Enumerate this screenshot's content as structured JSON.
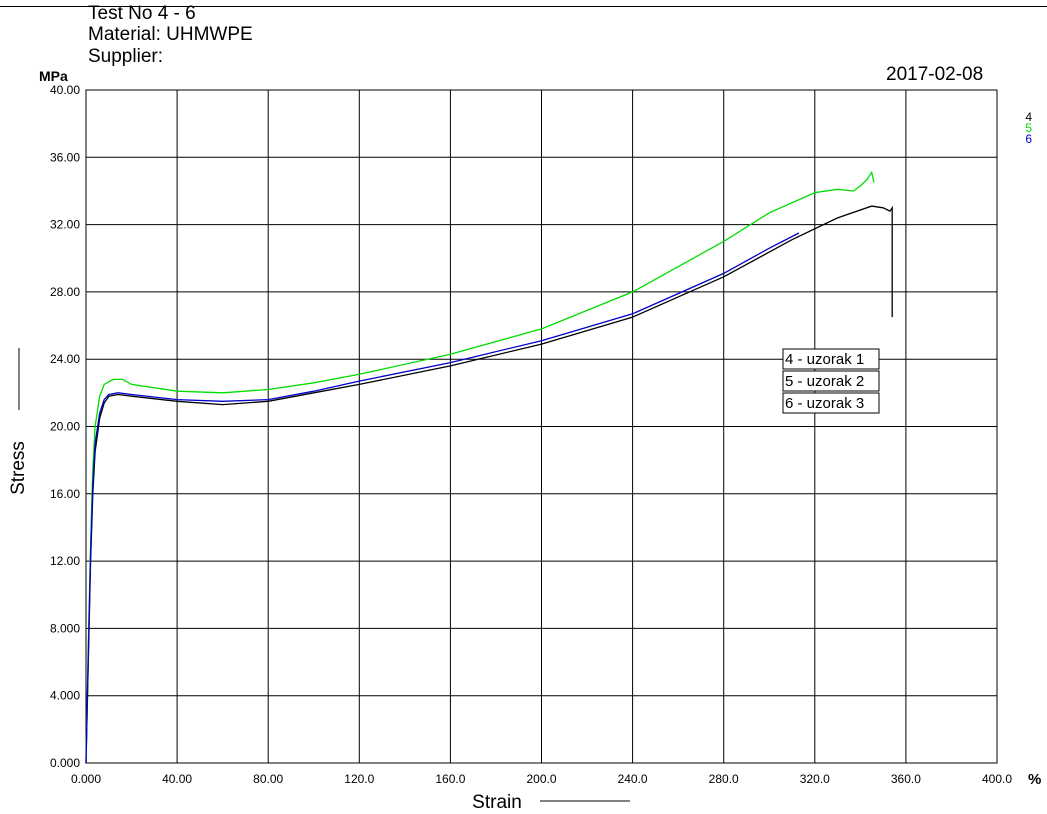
{
  "header": {
    "test_no": "Test No  4 - 6",
    "material": "Material: UHMWPE",
    "supplier": "Supplier:",
    "date": "2017-02-08",
    "y_unit": "MPa",
    "x_unit": "%"
  },
  "chart_data": {
    "type": "line",
    "xlabel": "Strain",
    "ylabel": "Stress",
    "xlim": [
      0,
      400
    ],
    "ylim": [
      0,
      40
    ],
    "grid": true,
    "x_ticks": [
      "0.000",
      "40.00",
      "80.00",
      "120.0",
      "160.0",
      "200.0",
      "240.0",
      "280.0",
      "320.0",
      "360.0",
      "400.0"
    ],
    "y_ticks": [
      "0.000",
      "4.000",
      "8.000",
      "12.00",
      "16.00",
      "20.00",
      "24.00",
      "28.00",
      "32.00",
      "36.00",
      "40.00"
    ],
    "legend_position": "top-right",
    "series": [
      {
        "name": "4",
        "color": "#000000",
        "label": "4 - uzorak 1",
        "points": [
          [
            0,
            0
          ],
          [
            1,
            6
          ],
          [
            2,
            12
          ],
          [
            3,
            16
          ],
          [
            4,
            18.5
          ],
          [
            6,
            20.5
          ],
          [
            8,
            21.4
          ],
          [
            10,
            21.8
          ],
          [
            14,
            21.9
          ],
          [
            20,
            21.8
          ],
          [
            40,
            21.5
          ],
          [
            60,
            21.3
          ],
          [
            80,
            21.5
          ],
          [
            100,
            22
          ],
          [
            120,
            22.5
          ],
          [
            160,
            23.6
          ],
          [
            200,
            24.9
          ],
          [
            240,
            26.5
          ],
          [
            280,
            28.9
          ],
          [
            310,
            31.1
          ],
          [
            330,
            32.4
          ],
          [
            345,
            33.1
          ],
          [
            350,
            33.0
          ],
          [
            353,
            32.8
          ],
          [
            354,
            33.0
          ],
          [
            354,
            26.5
          ]
        ]
      },
      {
        "name": "5",
        "color": "#00dd00",
        "label": "5 - uzorak 2",
        "points": [
          [
            0,
            0
          ],
          [
            1,
            7
          ],
          [
            2,
            13
          ],
          [
            3,
            17.5
          ],
          [
            4,
            20
          ],
          [
            6,
            21.8
          ],
          [
            8,
            22.5
          ],
          [
            12,
            22.8
          ],
          [
            16,
            22.8
          ],
          [
            20,
            22.5
          ],
          [
            40,
            22.1
          ],
          [
            60,
            22.0
          ],
          [
            80,
            22.2
          ],
          [
            100,
            22.6
          ],
          [
            120,
            23.1
          ],
          [
            160,
            24.3
          ],
          [
            200,
            25.8
          ],
          [
            240,
            28
          ],
          [
            280,
            31
          ],
          [
            300,
            32.7
          ],
          [
            320,
            33.9
          ],
          [
            330,
            34.1
          ],
          [
            337,
            34.0
          ],
          [
            340,
            34.3
          ],
          [
            343,
            34.7
          ],
          [
            345,
            35.1
          ],
          [
            346,
            34.5
          ]
        ]
      },
      {
        "name": "6",
        "color": "#0000cc",
        "label": "6 - uzorak 3",
        "points": [
          [
            0,
            0
          ],
          [
            1,
            6.5
          ],
          [
            2,
            12.5
          ],
          [
            3,
            16.5
          ],
          [
            4,
            19
          ],
          [
            6,
            20.8
          ],
          [
            8,
            21.6
          ],
          [
            10,
            21.9
          ],
          [
            14,
            22.0
          ],
          [
            20,
            21.9
          ],
          [
            40,
            21.6
          ],
          [
            60,
            21.5
          ],
          [
            80,
            21.6
          ],
          [
            100,
            22.1
          ],
          [
            120,
            22.7
          ],
          [
            160,
            23.8
          ],
          [
            200,
            25.1
          ],
          [
            240,
            26.7
          ],
          [
            280,
            29.1
          ],
          [
            300,
            30.6
          ],
          [
            313,
            31.5
          ]
        ]
      }
    ]
  }
}
